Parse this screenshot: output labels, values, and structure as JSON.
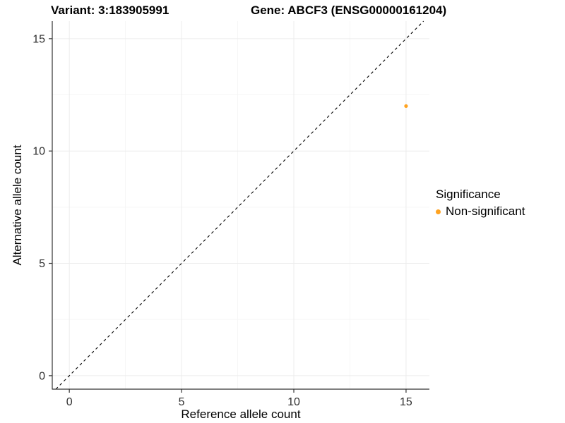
{
  "title": {
    "variant": "Variant: 3:183905991",
    "gene": "Gene: ABCF3 (ENSG00000161204)"
  },
  "legend": {
    "title": "Significance",
    "items": [
      {
        "label": "Non-significant",
        "color": "#FFA320"
      }
    ]
  },
  "colors": {
    "axis_line": "#333333",
    "tick_text": "#303030",
    "grid_major": "#ECECEC",
    "grid_minor": "#F5F5F5",
    "identity_line": "#000000",
    "point": "#FFA320",
    "background": "#FFFFFF"
  },
  "chart_data": {
    "type": "scatter",
    "title": "Variant: 3:183905991 | Gene: ABCF3 (ENSG00000161204)",
    "xlabel": "Reference allele count",
    "ylabel": "Alternative allele count",
    "xlim": [
      -0.76,
      16.04
    ],
    "ylim": [
      -0.6,
      15.78
    ],
    "x_ticks": [
      0,
      5,
      10,
      15
    ],
    "y_ticks": [
      0,
      5,
      10,
      15
    ],
    "grid": {
      "major": true,
      "minor": true
    },
    "legend_position": "right",
    "identity_line": {
      "slope": 1,
      "intercept": 0,
      "style": "dashed"
    },
    "series": [
      {
        "name": "Non-significant",
        "color": "#FFA320",
        "marker": "circle",
        "points": [
          {
            "x": 15,
            "y": 12
          }
        ]
      }
    ]
  }
}
